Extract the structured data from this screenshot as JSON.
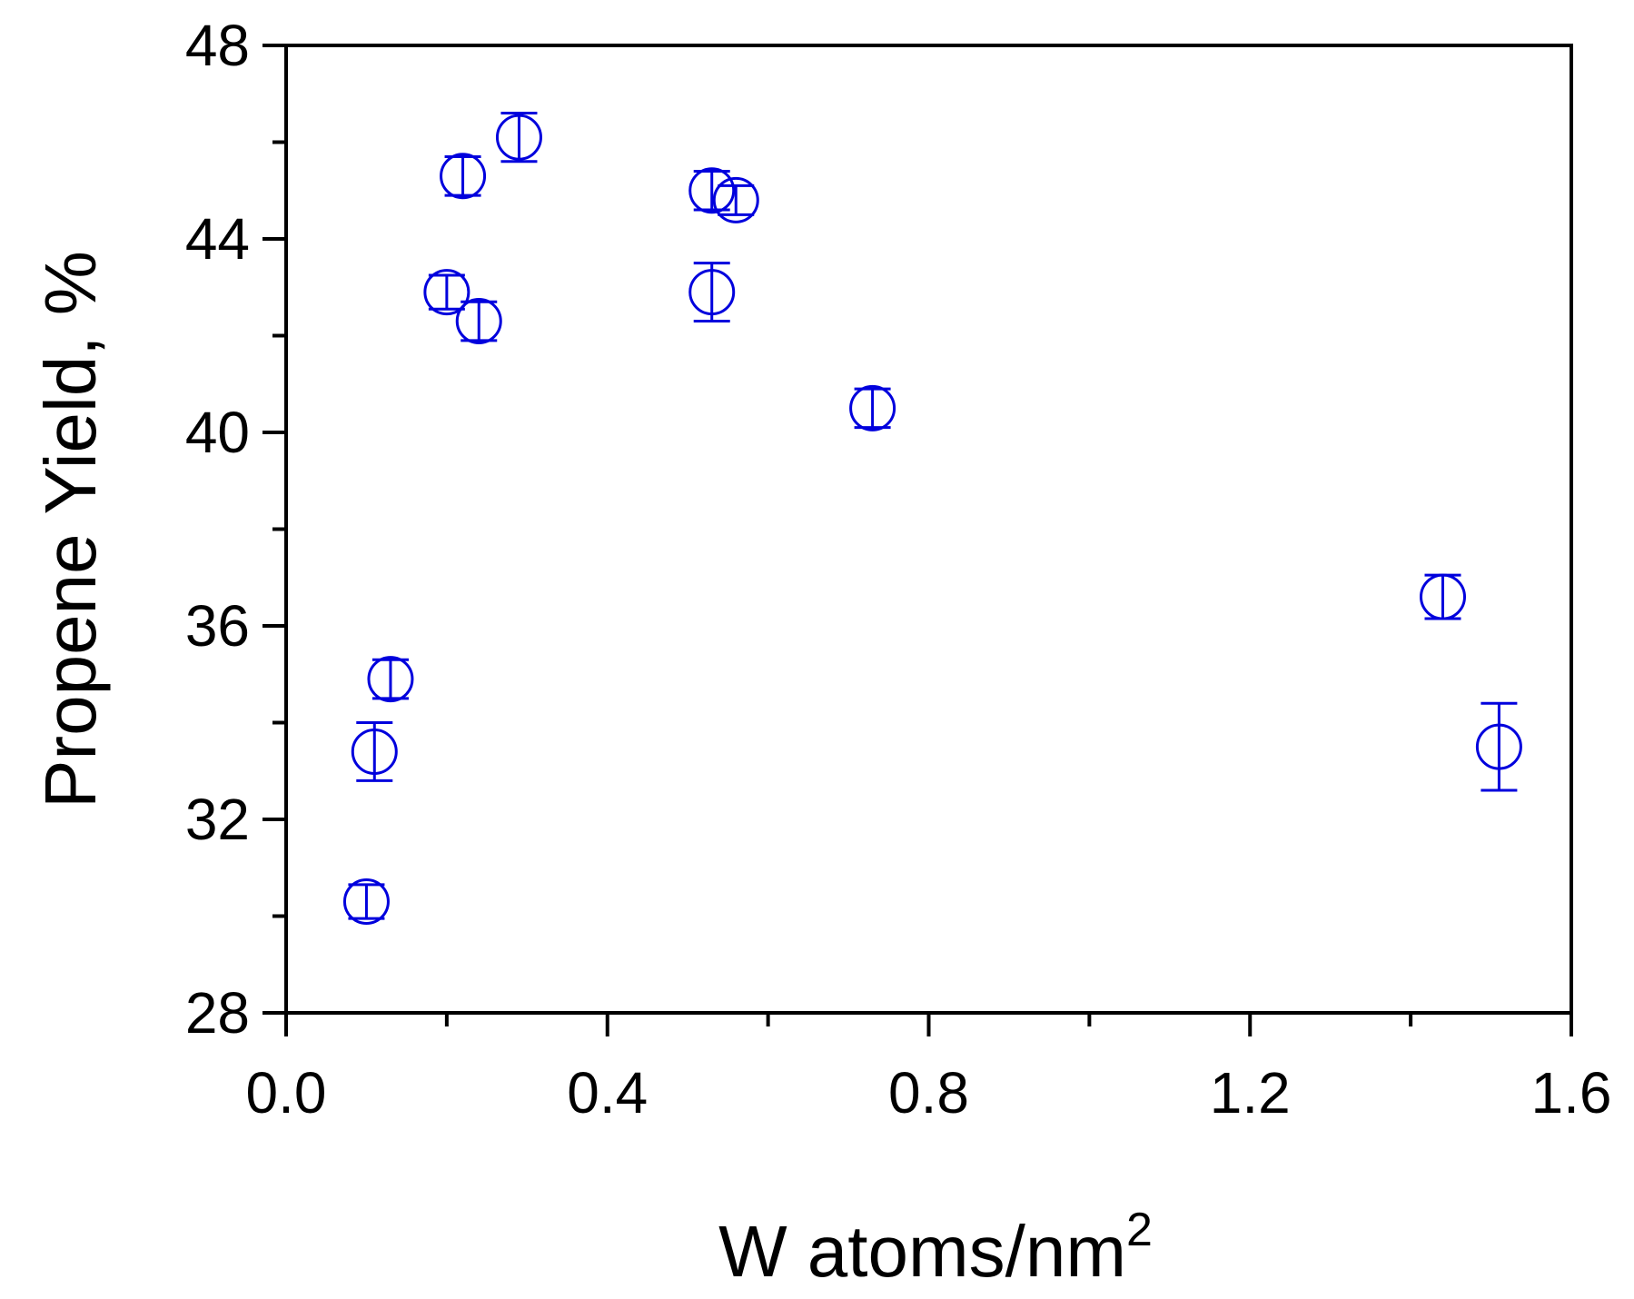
{
  "chart_data": {
    "type": "scatter",
    "xlabel": "W atoms/nm",
    "xlabel_superscript": "2",
    "ylabel": "Propene Yield, %",
    "xlim": [
      0.0,
      1.6
    ],
    "ylim": [
      28,
      48
    ],
    "x_ticks": [
      "0.0",
      "0.4",
      "0.8",
      "1.2",
      "1.6"
    ],
    "y_ticks": [
      "28",
      "32",
      "36",
      "40",
      "44",
      "48"
    ],
    "grid": false,
    "marker": "open-circle",
    "color": "#0000dd",
    "series": [
      {
        "points": [
          {
            "x": 0.1,
            "y": 30.3,
            "err": 0.35
          },
          {
            "x": 0.11,
            "y": 33.4,
            "err": 0.6
          },
          {
            "x": 0.13,
            "y": 34.9,
            "err": 0.4
          },
          {
            "x": 0.2,
            "y": 42.9,
            "err": 0.35
          },
          {
            "x": 0.22,
            "y": 45.3,
            "err": 0.4
          },
          {
            "x": 0.24,
            "y": 42.3,
            "err": 0.4
          },
          {
            "x": 0.29,
            "y": 46.1,
            "err": 0.5
          },
          {
            "x": 0.53,
            "y": 45.0,
            "err": 0.4
          },
          {
            "x": 0.53,
            "y": 42.9,
            "err": 0.6
          },
          {
            "x": 0.56,
            "y": 44.8,
            "err": 0.3
          },
          {
            "x": 0.73,
            "y": 40.5,
            "err": 0.4
          },
          {
            "x": 1.44,
            "y": 36.6,
            "err": 0.45
          },
          {
            "x": 1.51,
            "y": 33.5,
            "err": 0.9
          }
        ]
      }
    ]
  }
}
